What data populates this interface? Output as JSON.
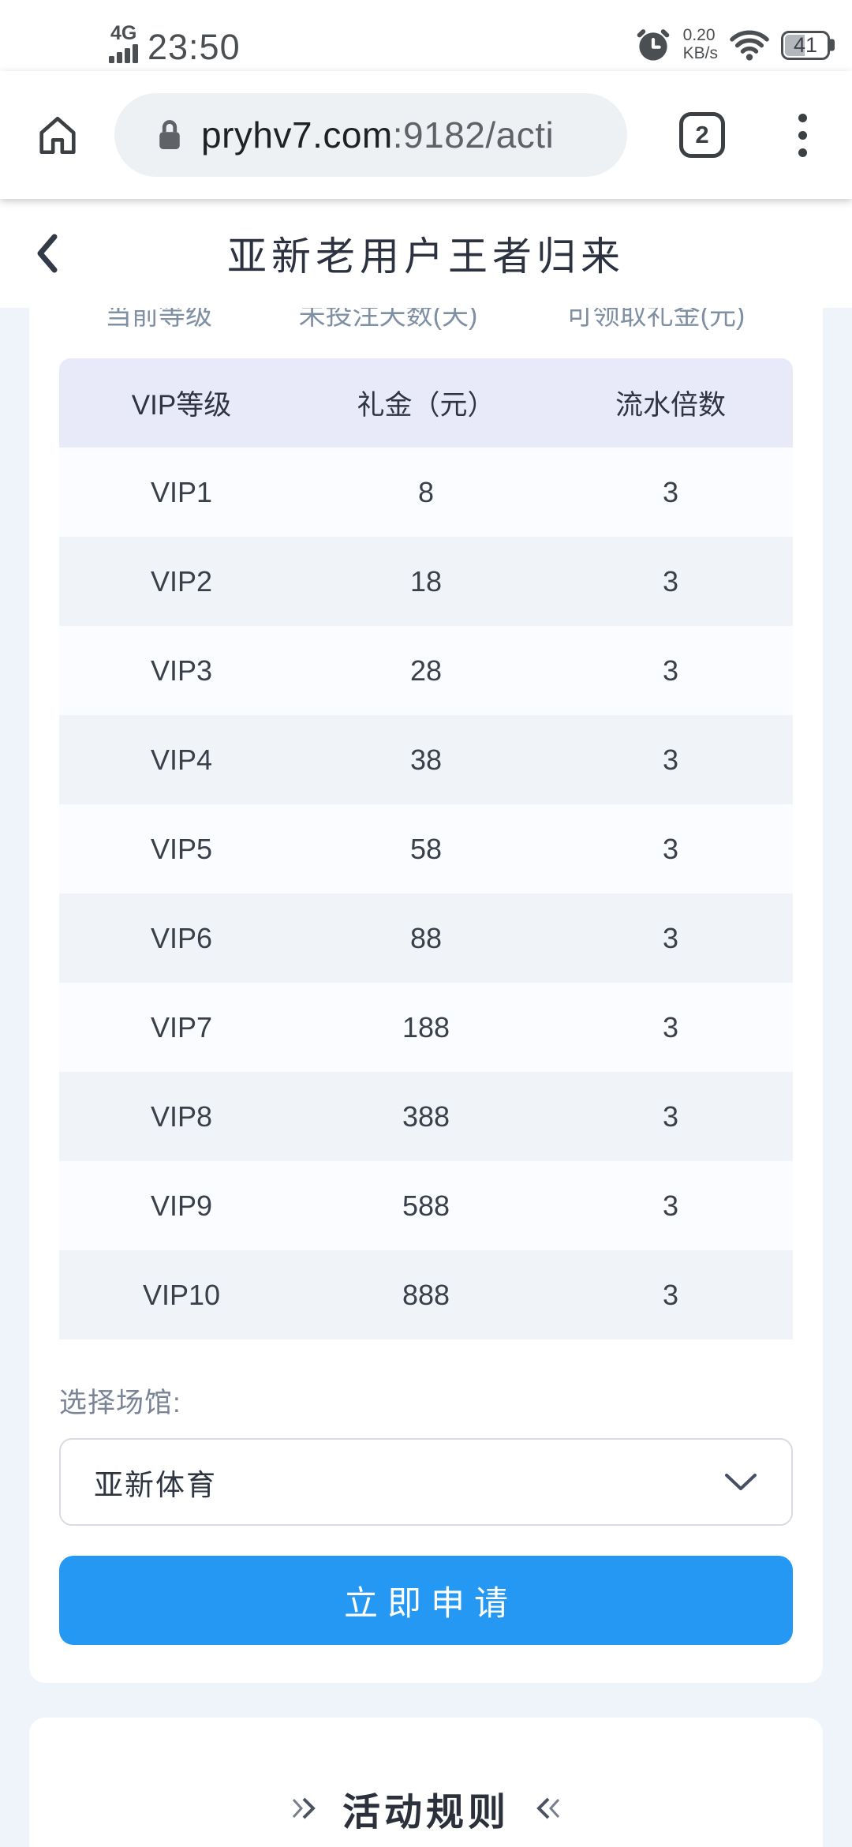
{
  "status_bar": {
    "network": "4G",
    "time": "23:50",
    "speed_value": "0.20",
    "speed_unit": "KB/s",
    "battery_percent": "41"
  },
  "browser": {
    "url_host": "pryhv7.com",
    "url_path": ":9182/acti",
    "tab_count": "2"
  },
  "page_header": {
    "title": "亚新老用户王者归来"
  },
  "status_table": {
    "columns": [
      "当前等级",
      "未投注天数(天)",
      "可领取礼金(元)"
    ]
  },
  "vip_table": {
    "columns": [
      "VIP等级",
      "礼金（元）",
      "流水倍数"
    ],
    "rows": [
      {
        "level": "VIP1",
        "bonus": "8",
        "multiplier": "3"
      },
      {
        "level": "VIP2",
        "bonus": "18",
        "multiplier": "3"
      },
      {
        "level": "VIP3",
        "bonus": "28",
        "multiplier": "3"
      },
      {
        "level": "VIP4",
        "bonus": "38",
        "multiplier": "3"
      },
      {
        "level": "VIP5",
        "bonus": "58",
        "multiplier": "3"
      },
      {
        "level": "VIP6",
        "bonus": "88",
        "multiplier": "3"
      },
      {
        "level": "VIP7",
        "bonus": "188",
        "multiplier": "3"
      },
      {
        "level": "VIP8",
        "bonus": "388",
        "multiplier": "3"
      },
      {
        "level": "VIP9",
        "bonus": "588",
        "multiplier": "3"
      },
      {
        "level": "VIP10",
        "bonus": "888",
        "multiplier": "3"
      }
    ]
  },
  "venue_select": {
    "label": "选择场馆:",
    "selected": "亚新体育"
  },
  "actions": {
    "apply_label": "立即申请"
  },
  "rules_section": {
    "title": "活动规则"
  },
  "colors": {
    "accent_blue": "#2598f3",
    "table_header_bg": "#e8eafa",
    "row_alt_bg": "#f0f4f9",
    "page_bg": "#eff3fa"
  }
}
